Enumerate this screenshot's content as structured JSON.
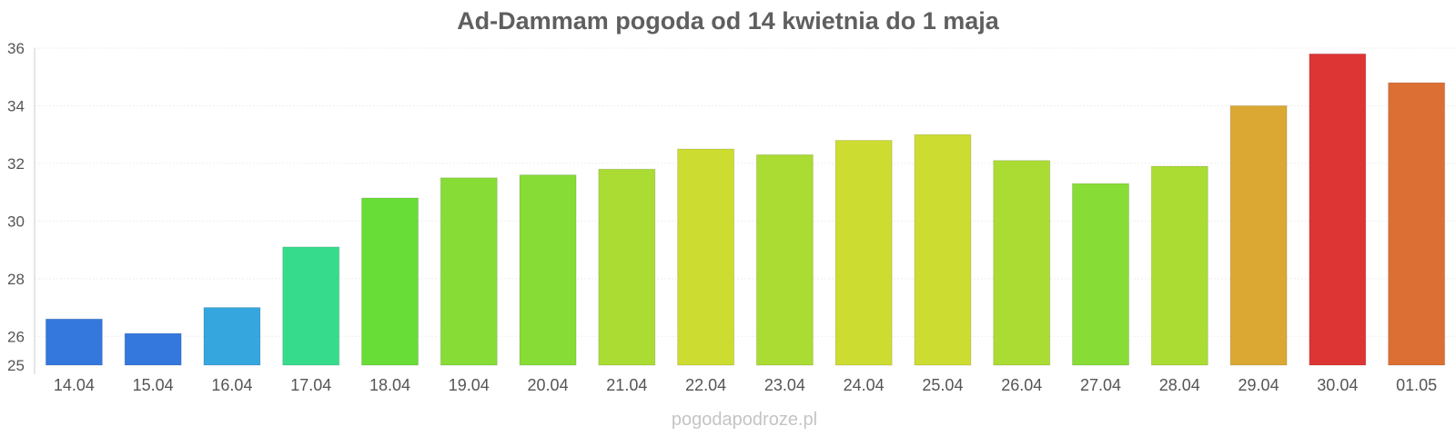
{
  "chart_data": {
    "type": "bar",
    "title": "Ad-Dammam pogoda od 14 kwietnia do 1 maja",
    "xlabel": "",
    "ylabel": "",
    "categories": [
      "14.04",
      "15.04",
      "16.04",
      "17.04",
      "18.04",
      "19.04",
      "20.04",
      "21.04",
      "22.04",
      "23.04",
      "24.04",
      "25.04",
      "26.04",
      "27.04",
      "28.04",
      "29.04",
      "30.04",
      "01.05"
    ],
    "values": [
      26.6,
      26.1,
      27.0,
      29.1,
      30.8,
      31.5,
      31.6,
      31.8,
      32.5,
      32.3,
      32.8,
      33.0,
      32.1,
      31.3,
      31.9,
      34.0,
      35.8,
      34.8
    ],
    "colors": [
      "#3478dd",
      "#3478dd",
      "#36a6df",
      "#36dc8b",
      "#68dd37",
      "#87dc36",
      "#87dc36",
      "#aadc33",
      "#cddc31",
      "#aadc33",
      "#cddc31",
      "#cddc31",
      "#aadc33",
      "#87dc36",
      "#aadc33",
      "#dba933",
      "#dc3534",
      "#dc6f34"
    ],
    "ylim": [
      25,
      36
    ],
    "yticks": [
      25,
      26,
      28,
      30,
      32,
      34,
      36
    ],
    "grid": true,
    "legend": "none"
  },
  "watermark": "pogodapodroze.pl"
}
